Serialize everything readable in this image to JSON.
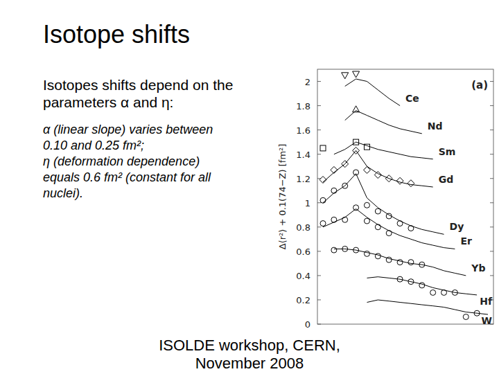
{
  "slide": {
    "title": "Isotope shifts",
    "intro": [
      "Isotopes shifts depend on the",
      "parameters α and η:"
    ],
    "bullets": [
      [
        "α (linear slope) varies between",
        "0.10 and 0.25 fm²;"
      ],
      [
        "η (deformation dependence)",
        "equals 0.6 fm² (constant for all",
        "nuclei)."
      ]
    ],
    "footer": [
      "ISOLDE workshop, CERN,",
      "November 2008"
    ]
  },
  "chart_data": {
    "type": "line",
    "y_label": "Δ⟨r²⟩ + 0.1(74−Z) [fm²]",
    "annotation": "(a)",
    "categories": [
      null,
      null,
      null,
      null,
      null,
      null,
      null,
      null,
      null,
      null,
      null,
      null,
      null,
      null,
      null,
      null
    ],
    "ylim": [
      0,
      2.1
    ],
    "yticks": [
      0,
      0.2,
      0.4,
      0.6,
      0.8,
      1,
      1.2,
      1.4,
      1.6,
      1.8,
      2
    ],
    "tick_labels": "y",
    "grid": false,
    "series": [
      {
        "name": "Ce",
        "color": "#000000",
        "marker": "triangle-down",
        "values": [
          null,
          null,
          1.96,
          2.02,
          2.0,
          1.93,
          1.86,
          1.8,
          null,
          null,
          null,
          null,
          null,
          null,
          null,
          null
        ],
        "points": [
          null,
          null,
          2.05,
          2.06,
          null,
          null,
          null,
          null,
          null,
          null,
          null,
          null,
          null,
          null,
          null,
          null
        ]
      },
      {
        "name": "Nd",
        "color": "#000000",
        "marker": "triangle-up",
        "values": [
          null,
          null,
          1.68,
          1.76,
          1.72,
          1.68,
          1.64,
          1.61,
          1.59,
          1.57,
          null,
          null,
          null,
          null,
          null,
          null
        ],
        "points": [
          null,
          null,
          null,
          1.77,
          null,
          null,
          null,
          null,
          null,
          null,
          null,
          null,
          null,
          null,
          null,
          null
        ]
      },
      {
        "name": "Sm",
        "color": "#000000",
        "marker": "square",
        "values": [
          null,
          1.4,
          1.44,
          1.5,
          1.47,
          1.44,
          1.42,
          1.4,
          1.38,
          1.37,
          1.36,
          null,
          null,
          null,
          null,
          null
        ],
        "points": [
          1.45,
          null,
          null,
          1.5,
          1.46,
          null,
          null,
          null,
          null,
          null,
          null,
          null,
          null,
          null,
          null,
          null
        ]
      },
      {
        "name": "Gd",
        "color": "#000000",
        "marker": "diamond",
        "values": [
          1.17,
          1.25,
          1.32,
          1.43,
          1.3,
          1.24,
          1.2,
          1.17,
          1.15,
          1.14,
          1.13,
          null,
          null,
          null,
          null,
          null
        ],
        "points": [
          1.19,
          1.27,
          1.32,
          1.43,
          1.27,
          1.23,
          1.2,
          1.18,
          1.16,
          null,
          null,
          null,
          null,
          null,
          null,
          null
        ]
      },
      {
        "name": "Dy",
        "color": "#000000",
        "marker": "circle",
        "values": [
          1.0,
          1.08,
          1.14,
          1.24,
          1.04,
          0.96,
          0.9,
          0.85,
          0.81,
          0.78,
          0.76,
          0.74,
          null,
          null,
          null,
          null
        ],
        "points": [
          1.02,
          1.1,
          1.14,
          1.25,
          0.98,
          0.93,
          0.89,
          0.83,
          0.79,
          null,
          null,
          null,
          null,
          null,
          null,
          null
        ]
      },
      {
        "name": "Er",
        "color": "#000000",
        "marker": "circle",
        "values": [
          0.8,
          0.84,
          0.88,
          0.95,
          0.88,
          0.82,
          0.77,
          0.73,
          0.7,
          0.67,
          0.65,
          0.63,
          0.62,
          null,
          null,
          null
        ],
        "points": [
          0.83,
          0.86,
          0.86,
          0.96,
          0.85,
          0.8,
          0.75,
          null,
          null,
          null,
          null,
          null,
          null,
          null,
          null,
          null
        ]
      },
      {
        "name": "Yb",
        "color": "#000000",
        "marker": "circle",
        "values": [
          null,
          0.62,
          0.62,
          0.61,
          0.59,
          0.57,
          0.54,
          0.52,
          0.5,
          0.49,
          0.47,
          0.44,
          0.42,
          0.4,
          null,
          null
        ],
        "points": [
          null,
          0.61,
          0.62,
          0.61,
          0.58,
          0.56,
          0.53,
          0.51,
          0.51,
          0.49,
          null,
          null,
          null,
          null,
          null,
          null
        ]
      },
      {
        "name": "Hf",
        "color": "#000000",
        "marker": "circle",
        "values": [
          null,
          null,
          null,
          null,
          0.38,
          0.39,
          0.38,
          0.37,
          0.35,
          0.33,
          0.3,
          0.28,
          0.26,
          0.25,
          0.24,
          null
        ],
        "points": [
          null,
          null,
          null,
          null,
          null,
          null,
          null,
          0.37,
          0.35,
          0.32,
          0.26,
          0.26,
          0.26,
          null,
          null,
          null
        ]
      },
      {
        "name": "W",
        "color": "#000000",
        "marker": "circle",
        "values": [
          null,
          null,
          null,
          null,
          0.18,
          0.2,
          0.19,
          0.18,
          0.17,
          0.16,
          0.15,
          0.14,
          0.12,
          0.1,
          0.09,
          0.08
        ],
        "points": [
          null,
          null,
          null,
          null,
          null,
          null,
          null,
          null,
          null,
          null,
          null,
          null,
          null,
          0.06,
          0.09,
          null
        ]
      }
    ]
  }
}
